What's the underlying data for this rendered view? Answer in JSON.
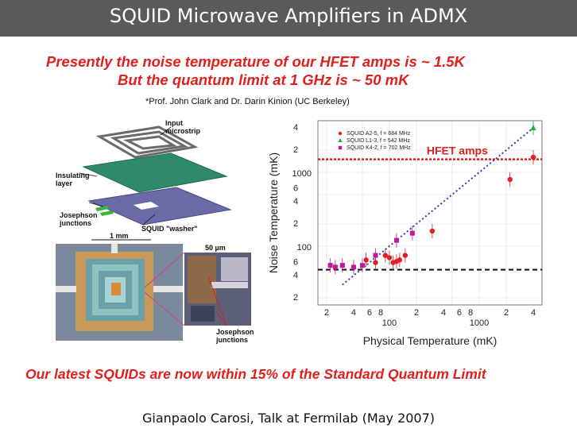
{
  "slide": {
    "title": "SQUID Microwave Amplifiers in ADMX",
    "line1": "Presently the noise temperature of our HFET amps is  ~ 1.5K",
    "line2": "But the quantum limit at 1 GHz is  ~ 50 mK",
    "credit": "*Prof. John Clark and Dr. Darin Kinion (UC Berkeley)",
    "bottom_line": "Our latest SQUIDs are now within 15% of the Standard Quantum Limit",
    "footer": "Gianpaolo Carosi,  Talk at Fermilab (May 2007)",
    "accent_color": "#e0201e"
  },
  "figure": {
    "labels": {
      "input": "Input",
      "microstrip": "microstrip",
      "insulating": "Insulating",
      "layer": "layer",
      "josephson": "Josephson",
      "junctions": "junctions",
      "washer": "SQUID \"washer\"",
      "scale": "1 mm",
      "zoom_scale": "50 µm",
      "josephson2": "Josephson",
      "junctions2": "junctions"
    }
  },
  "chart_data": {
    "type": "scatter",
    "title": "",
    "xlabel": "Physical Temperature (mK)",
    "ylabel": "Noise Temperature (mK)",
    "x_scale": "log",
    "y_scale": "log",
    "xlim": [
      16,
      5000
    ],
    "ylim": [
      16,
      5000
    ],
    "x_major_ticks": [
      "100",
      "1000"
    ],
    "y_major_ticks": [
      "100",
      "1000"
    ],
    "x_minor_tick_labels": [
      "2",
      "4",
      "6",
      "8",
      "2",
      "4",
      "6",
      "8",
      "2",
      "4"
    ],
    "y_minor_tick_labels": [
      "2",
      "4",
      "6",
      "2",
      "4",
      "6",
      "2",
      "4"
    ],
    "hfet_level": 1500,
    "hfet_label": "HFET amps",
    "quantum_limit_level": 48,
    "legend_position": "top-left",
    "series": [
      {
        "name": "SQUID A2-5, f = 684 MHz",
        "color": "#e0201e",
        "marker": "circle",
        "x": [
          55,
          70,
          90,
          100,
          110,
          120,
          130,
          150,
          300,
          2200,
          4000
        ],
        "y": [
          65,
          60,
          75,
          70,
          60,
          62,
          65,
          75,
          160,
          800,
          1600
        ]
      },
      {
        "name": "SQUID L1-3, f = 542 MHz",
        "color": "#2aaa3a",
        "marker": "triangle",
        "x": [
          4000
        ],
        "y": [
          4000
        ]
      },
      {
        "name": "SQUID K4-2, f = 702 MHz",
        "color": "#c0189a",
        "marker": "square",
        "x": [
          22,
          25,
          30,
          40,
          50,
          70,
          120,
          180
        ],
        "y": [
          55,
          52,
          55,
          52,
          55,
          75,
          120,
          150
        ]
      }
    ]
  }
}
